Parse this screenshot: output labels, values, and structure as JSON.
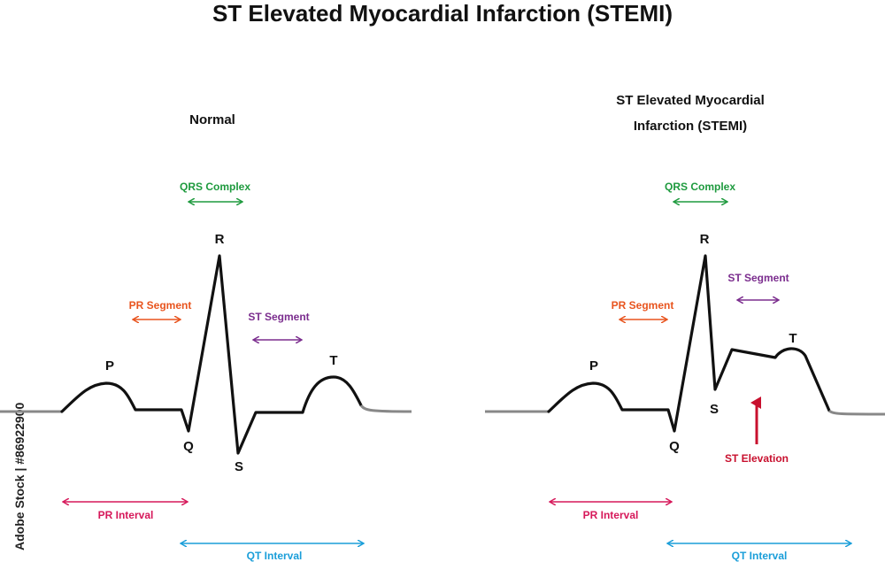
{
  "title": "ST Elevated Myocardial Infarction (STEMI)",
  "watermark": "Adobe Stock | #86922900",
  "colors": {
    "trace": "#111111",
    "qrs": "#1e9a3e",
    "pr_segment": "#e8541e",
    "st_segment": "#7b2d8e",
    "pr_interval": "#d6185a",
    "qt_interval": "#1a9ed9",
    "st_elevation": "#c8102e"
  },
  "panels": {
    "normal": {
      "heading": "Normal",
      "qrs": "QRS Complex",
      "pr_segment": "PR Segment",
      "st_segment": "ST Segment",
      "pr_interval": "PR Interval",
      "qt_interval": "QT Interval",
      "waves": {
        "p": "P",
        "q": "Q",
        "r": "R",
        "s": "S",
        "t": "T"
      }
    },
    "stemi": {
      "heading_line1": "ST Elevated Myocardial",
      "heading_line2": "Infarction (STEMI)",
      "qrs": "QRS Complex",
      "pr_segment": "PR Segment",
      "st_segment": "ST Segment",
      "pr_interval": "PR Interval",
      "qt_interval": "QT Interval",
      "st_elevation": "ST Elevation",
      "waves": {
        "p": "P",
        "q": "Q",
        "r": "R",
        "s": "S",
        "t": "T"
      }
    }
  }
}
